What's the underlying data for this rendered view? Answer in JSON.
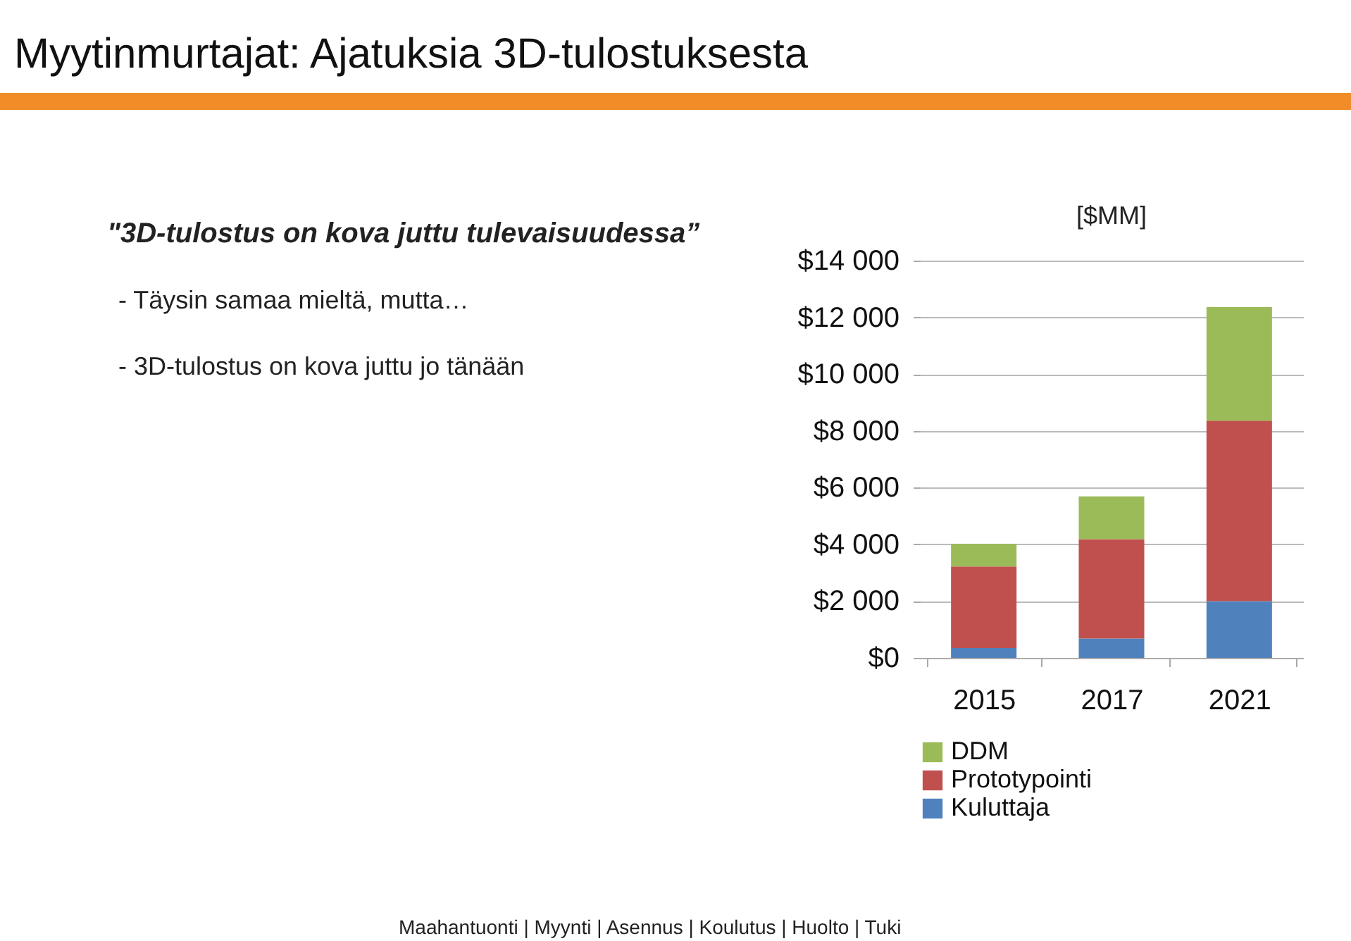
{
  "chart_data": {
    "type": "bar",
    "title": "Myytinmurtajat: Ajatuksia 3D-tulostuksesta",
    "subtitle": "[$MM]",
    "annotations": [
      "\"3D-tulostus on kova juttu tulevaisuudessa”",
      "- Täysin samaa mieltä, mutta…",
      "- 3D-tulostus on kova juttu jo tänään",
      "Maahantuonti | Myynti | Asennus | Koulutus | Huolto | Tuki"
    ],
    "categories": [
      "2015",
      "2017",
      "2021"
    ],
    "series": [
      {
        "name": "Kuluttaja",
        "color": "#4f81bd",
        "values": [
          350,
          680,
          2000
        ]
      },
      {
        "name": "Prototypointi",
        "color": "#c0504d",
        "values": [
          2870,
          3500,
          6360
        ]
      },
      {
        "name": "DDM",
        "color": "#9bbb59",
        "values": [
          800,
          1510,
          4000
        ]
      }
    ],
    "stacked": true,
    "ylim": [
      0,
      14000
    ],
    "yticks": [
      {
        "value": 0,
        "label": "$0"
      },
      {
        "value": 2000,
        "label": "$2 000"
      },
      {
        "value": 4000,
        "label": "$4 000"
      },
      {
        "value": 6000,
        "label": "$6 000"
      },
      {
        "value": 8000,
        "label": "$8 000"
      },
      {
        "value": 10000,
        "label": "$10 000"
      },
      {
        "value": 12000,
        "label": "$12 000"
      },
      {
        "value": 14000,
        "label": "$14 000"
      }
    ],
    "grid": "y",
    "legend": "bottom"
  }
}
